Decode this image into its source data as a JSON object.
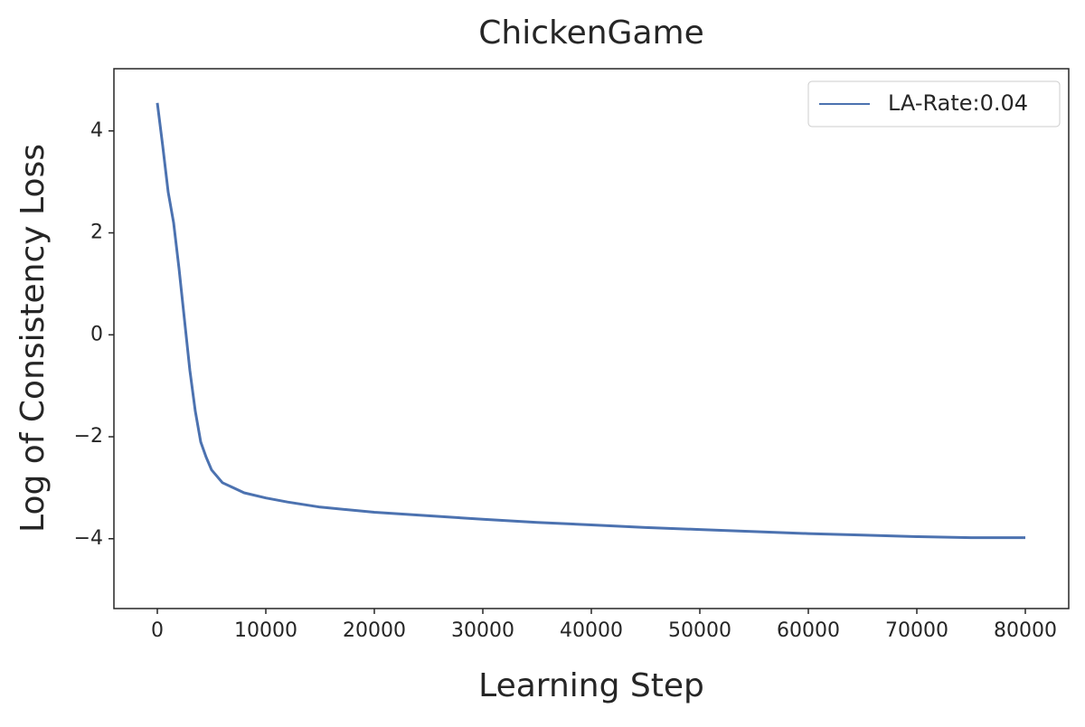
{
  "chart_data": {
    "type": "line",
    "title": "ChickenGame",
    "x_label": "Learning Step",
    "y_label": "Log of Consistency Loss",
    "x": [
      0,
      500,
      1000,
      1500,
      2000,
      2500,
      3000,
      3500,
      4000,
      4500,
      5000,
      6000,
      7000,
      8000,
      10000,
      12000,
      15000,
      20000,
      25000,
      30000,
      35000,
      40000,
      45000,
      50000,
      55000,
      60000,
      65000,
      70000,
      75000,
      80000
    ],
    "series": [
      {
        "name": "LA-Rate:0.04",
        "color": "#4c72b0",
        "values": [
          4.55,
          3.7,
          2.8,
          2.2,
          1.3,
          0.3,
          -0.7,
          -1.5,
          -2.1,
          -2.4,
          -2.65,
          -2.9,
          -3.0,
          -3.1,
          -3.2,
          -3.28,
          -3.38,
          -3.48,
          -3.55,
          -3.62,
          -3.68,
          -3.73,
          -3.78,
          -3.82,
          -3.86,
          -3.9,
          -3.93,
          -3.96,
          -3.98,
          -3.98
        ]
      }
    ],
    "xlim": [
      -4000,
      84000
    ],
    "ylim": [
      -5.37,
      5.22
    ],
    "xticks": [
      0,
      10000,
      20000,
      30000,
      40000,
      50000,
      60000,
      70000,
      80000
    ],
    "yticks": [
      {
        "value": -4,
        "label": "−4"
      },
      {
        "value": -2,
        "label": "−2"
      },
      0,
      2,
      4
    ],
    "grid": false,
    "legend_position": "upper right"
  }
}
